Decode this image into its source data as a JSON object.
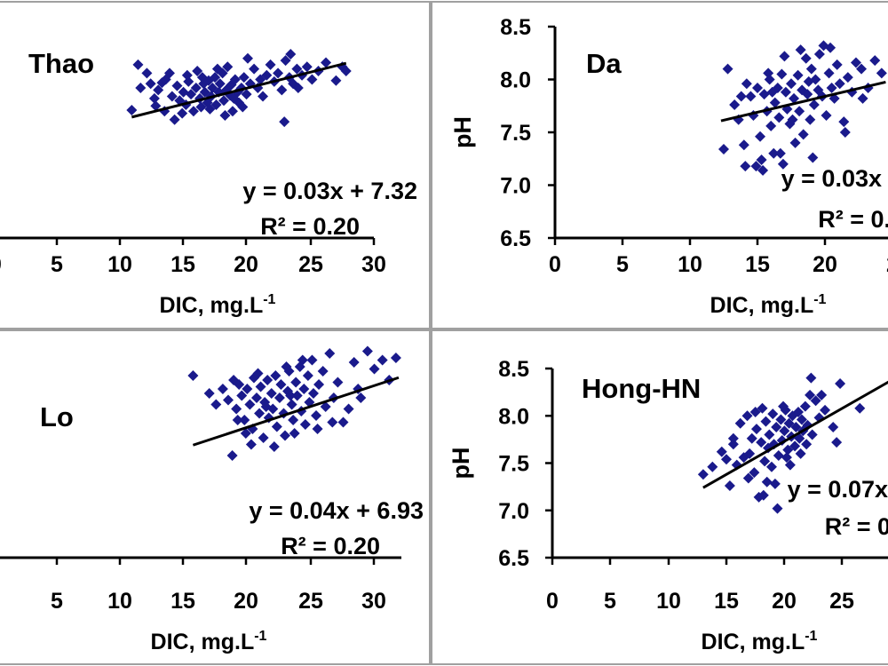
{
  "chart_data": [
    {
      "type": "scatter",
      "station": "Thao",
      "xlabel_main": "DIC, mg.L",
      "xlabel_sup": "-1",
      "ylabel": "",
      "xlim": [
        0,
        30
      ],
      "ylim": [
        6.5,
        8.5
      ],
      "xticks": [
        "0",
        "5",
        "10",
        "15",
        "20",
        "25",
        "30"
      ],
      "yticks": [],
      "equation": "y = 0.03x + 7.32",
      "r2": "R² = 0.20",
      "trend": {
        "slope": 0.03,
        "intercept": 7.32,
        "x_from": 10.8,
        "x_to": 27.8
      },
      "marker_color": "#1a1a8c",
      "points": [
        [
          10.8,
          7.71
        ],
        [
          11.3,
          8.14
        ],
        [
          11.5,
          7.92
        ],
        [
          12.0,
          8.06
        ],
        [
          12.3,
          7.96
        ],
        [
          12.6,
          7.82
        ],
        [
          12.9,
          7.9
        ],
        [
          13.2,
          7.97
        ],
        [
          13.5,
          8.0
        ],
        [
          13.8,
          8.06
        ],
        [
          14.0,
          7.84
        ],
        [
          14.2,
          7.62
        ],
        [
          14.4,
          7.94
        ],
        [
          14.6,
          7.8
        ],
        [
          14.9,
          7.88
        ],
        [
          15.1,
          7.76
        ],
        [
          15.3,
          7.98
        ],
        [
          15.5,
          7.86
        ],
        [
          15.7,
          7.7
        ],
        [
          15.9,
          7.92
        ],
        [
          16.0,
          8.08
        ],
        [
          16.2,
          7.82
        ],
        [
          16.3,
          7.74
        ],
        [
          16.5,
          7.96
        ],
        [
          16.6,
          7.88
        ],
        [
          16.8,
          7.78
        ],
        [
          16.9,
          7.99
        ],
        [
          17.1,
          7.84
        ],
        [
          17.2,
          7.92
        ],
        [
          17.4,
          8.02
        ],
        [
          17.5,
          7.76
        ],
        [
          17.7,
          7.88
        ],
        [
          17.8,
          7.96
        ],
        [
          18.0,
          8.06
        ],
        [
          18.1,
          7.8
        ],
        [
          18.3,
          7.9
        ],
        [
          18.4,
          8.12
        ],
        [
          18.6,
          7.85
        ],
        [
          18.7,
          7.95
        ],
        [
          18.9,
          7.82
        ],
        [
          19.0,
          8.0
        ],
        [
          19.2,
          7.88
        ],
        [
          19.3,
          7.78
        ],
        [
          19.5,
          7.92
        ],
        [
          19.7,
          8.02
        ],
        [
          19.9,
          7.86
        ],
        [
          20.2,
          7.96
        ],
        [
          20.5,
          8.1
        ],
        [
          20.8,
          7.92
        ],
        [
          21.2,
          7.84
        ],
        [
          21.5,
          8.04
        ],
        [
          21.8,
          8.14
        ],
        [
          22.1,
          7.98
        ],
        [
          22.4,
          8.06
        ],
        [
          22.7,
          7.9
        ],
        [
          23.0,
          8.18
        ],
        [
          23.3,
          8.02
        ],
        [
          23.6,
          7.96
        ],
        [
          23.9,
          8.1
        ],
        [
          24.3,
          8.04
        ],
        [
          24.7,
          8.12
        ],
        [
          25.1,
          8.0
        ],
        [
          25.6,
          8.08
        ],
        [
          26.2,
          8.16
        ],
        [
          27.0,
          7.99
        ],
        [
          27.5,
          8.12
        ],
        [
          27.8,
          8.08
        ],
        [
          14.8,
          7.68
        ],
        [
          17.0,
          7.72
        ],
        [
          18.2,
          7.66
        ],
        [
          22.9,
          7.6
        ],
        [
          12.7,
          7.75
        ],
        [
          20.0,
          8.2
        ],
        [
          23.4,
          8.24
        ],
        [
          16.4,
          8.02
        ],
        [
          19.6,
          7.74
        ],
        [
          21.0,
          8.0
        ],
        [
          24.0,
          7.92
        ],
        [
          15.2,
          8.04
        ],
        [
          17.6,
          8.1
        ],
        [
          13.4,
          7.7
        ],
        [
          18.8,
          7.7
        ]
      ]
    },
    {
      "type": "scatter",
      "station": "Da",
      "xlabel_main": "DIC, mg.L",
      "xlabel_sup": "-1",
      "ylabel": "pH",
      "xlim": [
        0,
        25
      ],
      "ylim": [
        6.5,
        8.5
      ],
      "xticks": [
        "0",
        "5",
        "10",
        "15",
        "20",
        "2"
      ],
      "yticks": [
        "6.5",
        "7.0",
        "7.5",
        "8.0",
        "8.5"
      ],
      "equation": "y = 0.03x",
      "r2": "R² = 0.",
      "trend": {
        "slope": 0.03,
        "intercept": 7.24,
        "x_from": 12.3,
        "x_to": 24.5
      },
      "marker_color": "#1a1a8c",
      "points": [
        [
          12.5,
          7.34
        ],
        [
          12.8,
          8.1
        ],
        [
          13.3,
          7.76
        ],
        [
          13.6,
          7.62
        ],
        [
          13.8,
          7.84
        ],
        [
          14.0,
          7.38
        ],
        [
          14.2,
          7.96
        ],
        [
          14.5,
          7.84
        ],
        [
          14.7,
          7.66
        ],
        [
          14.9,
          7.18
        ],
        [
          15.0,
          7.92
        ],
        [
          15.2,
          7.46
        ],
        [
          15.4,
          7.14
        ],
        [
          15.5,
          7.86
        ],
        [
          15.7,
          7.7
        ],
        [
          15.9,
          8.0
        ],
        [
          16.0,
          7.56
        ],
        [
          16.2,
          7.3
        ],
        [
          16.3,
          7.78
        ],
        [
          16.5,
          7.92
        ],
        [
          16.6,
          7.64
        ],
        [
          16.8,
          8.05
        ],
        [
          16.9,
          7.2
        ],
        [
          17.1,
          7.88
        ],
        [
          17.2,
          7.72
        ],
        [
          17.4,
          7.58
        ],
        [
          17.5,
          7.96
        ],
        [
          17.7,
          7.82
        ],
        [
          17.8,
          7.4
        ],
        [
          18.0,
          8.04
        ],
        [
          18.1,
          7.7
        ],
        [
          18.3,
          7.9
        ],
        [
          18.4,
          7.48
        ],
        [
          18.6,
          8.2
        ],
        [
          18.7,
          7.86
        ],
        [
          18.9,
          7.62
        ],
        [
          19.0,
          8.1
        ],
        [
          19.2,
          7.76
        ],
        [
          19.3,
          8.0
        ],
        [
          19.5,
          7.9
        ],
        [
          19.6,
          8.24
        ],
        [
          19.8,
          7.84
        ],
        [
          19.9,
          8.32
        ],
        [
          20.1,
          7.66
        ],
        [
          20.3,
          8.06
        ],
        [
          20.5,
          7.92
        ],
        [
          20.7,
          7.82
        ],
        [
          20.9,
          8.14
        ],
        [
          21.1,
          7.96
        ],
        [
          21.4,
          7.6
        ],
        [
          21.7,
          8.02
        ],
        [
          22.0,
          7.88
        ],
        [
          22.3,
          8.16
        ],
        [
          22.7,
          8.1
        ],
        [
          23.2,
          7.92
        ],
        [
          23.7,
          8.18
        ],
        [
          24.2,
          8.06
        ],
        [
          17.0,
          8.22
        ],
        [
          18.2,
          8.28
        ],
        [
          15.3,
          7.24
        ],
        [
          14.1,
          7.18
        ],
        [
          16.7,
          7.3
        ],
        [
          21.5,
          7.5
        ],
        [
          20.4,
          8.3
        ],
        [
          19.1,
          7.26
        ],
        [
          17.6,
          7.62
        ],
        [
          18.8,
          7.98
        ],
        [
          16.1,
          7.88
        ],
        [
          22.8,
          7.82
        ],
        [
          15.8,
          8.06
        ]
      ]
    },
    {
      "type": "scatter",
      "station": "Lo",
      "xlabel_main": "DIC, mg.L",
      "xlabel_sup": "-1",
      "ylabel": "",
      "xlim": [
        0,
        30
      ],
      "ylim": [
        6.5,
        8.5
      ],
      "xticks": [
        "5",
        "10",
        "15",
        "20",
        "25",
        "30"
      ],
      "yticks": [],
      "equation": "y = 0.04x + 6.93",
      "r2": "R² = 0.20",
      "trend": {
        "slope": 0.04,
        "intercept": 6.93,
        "x_from": 14.6,
        "x_to": 29.8
      },
      "marker_color": "#1a1a8c",
      "points": [
        [
          14.6,
          8.14
        ],
        [
          15.8,
          7.98
        ],
        [
          16.3,
          7.88
        ],
        [
          16.8,
          8.02
        ],
        [
          17.2,
          7.92
        ],
        [
          17.5,
          7.42
        ],
        [
          17.6,
          8.1
        ],
        [
          17.8,
          7.84
        ],
        [
          18.0,
          8.06
        ],
        [
          18.2,
          7.96
        ],
        [
          18.4,
          7.74
        ],
        [
          18.6,
          8.02
        ],
        [
          18.8,
          7.88
        ],
        [
          19.0,
          7.66
        ],
        [
          19.1,
          8.12
        ],
        [
          19.3,
          7.94
        ],
        [
          19.5,
          7.8
        ],
        [
          19.6,
          8.04
        ],
        [
          19.8,
          7.58
        ],
        [
          19.9,
          7.9
        ],
        [
          20.1,
          8.1
        ],
        [
          20.2,
          7.76
        ],
        [
          20.4,
          7.98
        ],
        [
          20.5,
          7.84
        ],
        [
          20.7,
          8.14
        ],
        [
          20.8,
          7.68
        ],
        [
          21.0,
          7.94
        ],
        [
          21.1,
          8.06
        ],
        [
          21.3,
          7.8
        ],
        [
          21.4,
          7.6
        ],
        [
          21.6,
          8.0
        ],
        [
          21.7,
          8.18
        ],
        [
          21.9,
          7.88
        ],
        [
          22.0,
          7.74
        ],
        [
          22.2,
          8.08
        ],
        [
          22.3,
          7.96
        ],
        [
          22.5,
          8.22
        ],
        [
          22.6,
          7.82
        ],
        [
          22.8,
          8.02
        ],
        [
          22.9,
          7.7
        ],
        [
          23.1,
          8.14
        ],
        [
          23.2,
          7.9
        ],
        [
          23.4,
          8.28
        ],
        [
          23.5,
          7.98
        ],
        [
          23.7,
          7.78
        ],
        [
          23.9,
          8.06
        ],
        [
          24.2,
          8.18
        ],
        [
          24.4,
          7.86
        ],
        [
          24.7,
          8.34
        ],
        [
          25.0,
          7.94
        ],
        [
          25.3,
          8.08
        ],
        [
          25.7,
          7.72
        ],
        [
          26.1,
          7.84
        ],
        [
          26.5,
          8.26
        ],
        [
          27.0,
          7.94
        ],
        [
          27.5,
          8.36
        ],
        [
          28.0,
          8.2
        ],
        [
          28.6,
          8.28
        ],
        [
          29.1,
          8.1
        ],
        [
          29.6,
          8.3
        ],
        [
          18.9,
          7.52
        ],
        [
          20.6,
          7.5
        ],
        [
          22.1,
          7.62
        ],
        [
          17.9,
          7.74
        ],
        [
          19.4,
          8.16
        ],
        [
          21.5,
          8.22
        ],
        [
          23.8,
          7.66
        ],
        [
          26.8,
          8.02
        ],
        [
          24.9,
          7.72
        ],
        [
          20.0,
          7.86
        ],
        [
          21.8,
          7.96
        ],
        [
          18.5,
          7.62
        ],
        [
          22.7,
          8.28
        ]
      ]
    },
    {
      "type": "scatter",
      "station": "Hong-HN",
      "xlabel_main": "DIC, mg.L",
      "xlabel_sup": "-1",
      "ylabel": "pH",
      "xlim": [
        0,
        30
      ],
      "ylim": [
        6.5,
        8.5
      ],
      "xticks": [
        "0",
        "5",
        "10",
        "15",
        "20",
        "25",
        "3"
      ],
      "yticks": [
        "6.5",
        "7.0",
        "7.5",
        "8.0",
        "8.5"
      ],
      "equation": "y = 0.07x",
      "r2": "R² = 0",
      "trend": {
        "slope": 0.07,
        "intercept": 6.33,
        "x_from": 13.0,
        "x_to": 30.0
      },
      "marker_color": "#1a1a8c",
      "points": [
        [
          13.0,
          7.38
        ],
        [
          13.8,
          7.46
        ],
        [
          14.6,
          7.62
        ],
        [
          15.0,
          7.54
        ],
        [
          15.3,
          7.26
        ],
        [
          15.6,
          7.7
        ],
        [
          15.9,
          7.48
        ],
        [
          16.2,
          7.92
        ],
        [
          16.5,
          7.56
        ],
        [
          16.8,
          8.0
        ],
        [
          17.0,
          7.6
        ],
        [
          17.2,
          7.76
        ],
        [
          17.4,
          7.4
        ],
        [
          17.6,
          7.86
        ],
        [
          17.8,
          7.14
        ],
        [
          18.0,
          7.72
        ],
        [
          18.1,
          8.08
        ],
        [
          18.3,
          7.52
        ],
        [
          18.4,
          7.94
        ],
        [
          18.6,
          7.66
        ],
        [
          18.7,
          7.8
        ],
        [
          18.9,
          7.46
        ],
        [
          19.0,
          8.02
        ],
        [
          19.1,
          7.7
        ],
        [
          19.3,
          7.88
        ],
        [
          19.4,
          7.02
        ],
        [
          19.5,
          7.58
        ],
        [
          19.7,
          7.96
        ],
        [
          19.8,
          7.74
        ],
        [
          20.0,
          7.84
        ],
        [
          20.1,
          8.06
        ],
        [
          20.3,
          7.64
        ],
        [
          20.4,
          7.92
        ],
        [
          20.6,
          7.78
        ],
        [
          20.7,
          8.0
        ],
        [
          20.9,
          7.68
        ],
        [
          21.0,
          7.88
        ],
        [
          21.2,
          8.04
        ],
        [
          21.3,
          7.76
        ],
        [
          21.5,
          7.96
        ],
        [
          21.6,
          7.84
        ],
        [
          21.8,
          8.1
        ],
        [
          22.0,
          7.9
        ],
        [
          22.2,
          8.22
        ],
        [
          22.4,
          7.8
        ],
        [
          22.7,
          8.16
        ],
        [
          23.0,
          7.98
        ],
        [
          23.5,
          8.06
        ],
        [
          24.2,
          7.88
        ],
        [
          24.8,
          8.34
        ],
        [
          26.5,
          8.08
        ],
        [
          18.2,
          7.16
        ],
        [
          16.9,
          7.34
        ],
        [
          19.9,
          8.1
        ],
        [
          21.4,
          7.6
        ],
        [
          20.5,
          7.48
        ],
        [
          17.5,
          8.04
        ],
        [
          22.3,
          8.4
        ],
        [
          24.5,
          7.72
        ],
        [
          15.6,
          7.76
        ],
        [
          19.2,
          7.28
        ],
        [
          18.5,
          7.3
        ],
        [
          20.2,
          7.56
        ],
        [
          23.2,
          8.22
        ],
        [
          21.9,
          7.7
        ]
      ]
    }
  ]
}
